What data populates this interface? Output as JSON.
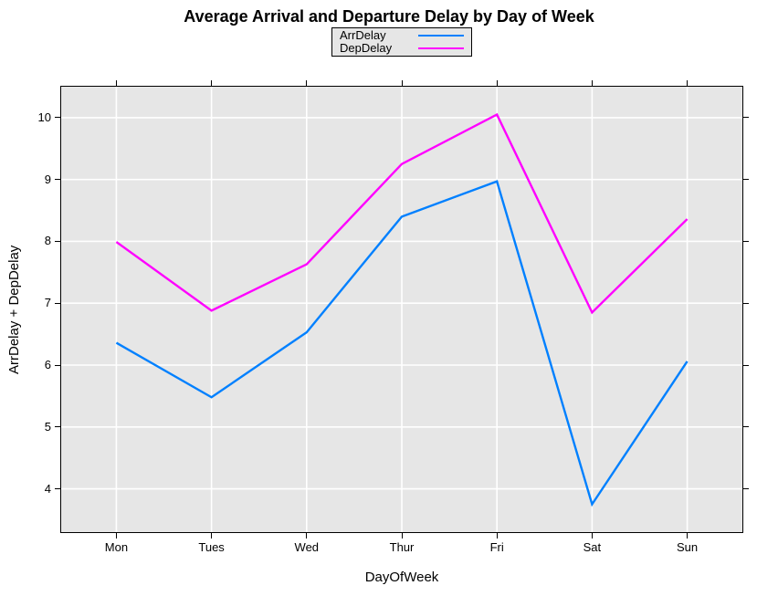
{
  "figure": {
    "background": "#ffffff"
  },
  "chart_data": {
    "type": "line",
    "title": "Average Arrival and Departure Delay by Day of Week",
    "xlabel": "DayOfWeek",
    "ylabel": "ArrDelay + DepDelay",
    "categories": [
      "Mon",
      "Tues",
      "Wed",
      "Thur",
      "Fri",
      "Sat",
      "Sun"
    ],
    "series": [
      {
        "name": "ArrDelay",
        "color": "#0080FF",
        "values": [
          6.36,
          5.48,
          6.53,
          8.4,
          8.97,
          3.75,
          6.06
        ]
      },
      {
        "name": "DepDelay",
        "color": "#FF00FF",
        "values": [
          7.99,
          6.88,
          7.63,
          9.25,
          10.05,
          6.85,
          8.36
        ]
      }
    ],
    "y_ticks": [
      4,
      5,
      6,
      7,
      8,
      9,
      10
    ],
    "ylim": [
      3.3,
      10.5
    ],
    "x_pad_frac": 0.081,
    "grid": true,
    "grid_color": "#ffffff",
    "panel_bg": "#e6e6e6",
    "axis_color": "#000000",
    "legend_position": "top-center",
    "legend_bg": "#e6e6e6"
  }
}
